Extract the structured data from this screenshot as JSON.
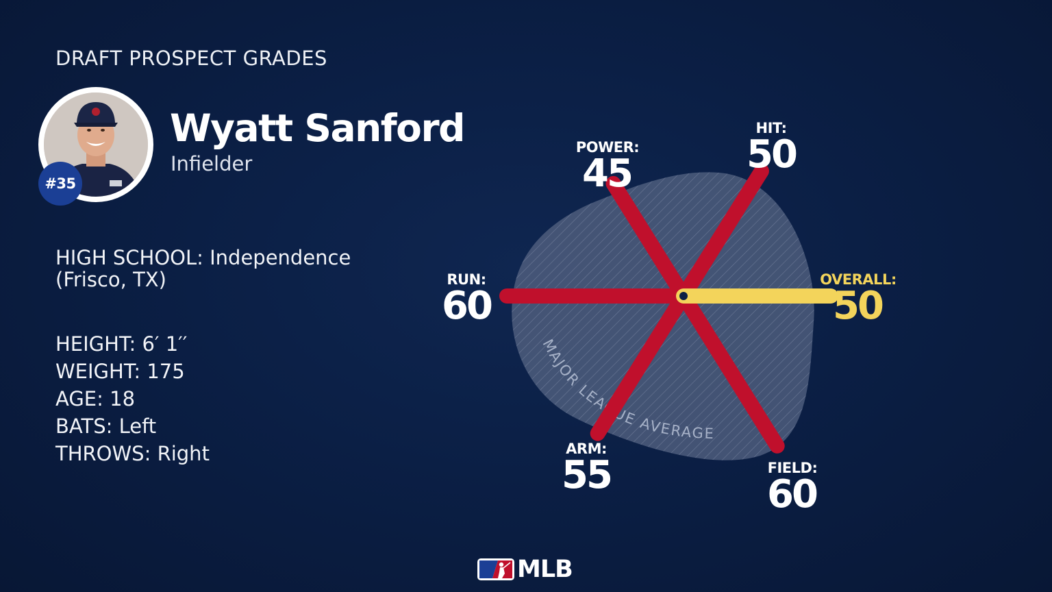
{
  "header": {
    "section_title": "DRAFT PROSPECT GRADES"
  },
  "player": {
    "name": "Wyatt Sanford",
    "position": "Infielder",
    "number": "#35",
    "high_school": "HIGH SCHOOL: Independence (Frisco, TX)",
    "height": "HEIGHT: 6′ 1′′",
    "weight": "WEIGHT: 175",
    "age": "AGE: 18",
    "bats": "BATS: Left",
    "throws": "THROWS: Right"
  },
  "chart_data": {
    "type": "radar",
    "scale": "20-80 scouting grades",
    "average_label": "MAJOR LEAGUE AVERAGE",
    "grades": [
      {
        "label": "HIT:",
        "value": 50
      },
      {
        "label": "POWER:",
        "value": 45
      },
      {
        "label": "RUN:",
        "value": 60
      },
      {
        "label": "ARM:",
        "value": 55
      },
      {
        "label": "FIELD:",
        "value": 60
      },
      {
        "label": "OVERALL:",
        "value": 50
      }
    ],
    "colors": {
      "grade_spoke": "#c0102c",
      "overall_spoke": "#f3d45b",
      "average_area": "#5b6a88"
    }
  },
  "brand": {
    "logo_text": "MLB",
    "logo_icon": "mlb-batter-logo-icon"
  }
}
